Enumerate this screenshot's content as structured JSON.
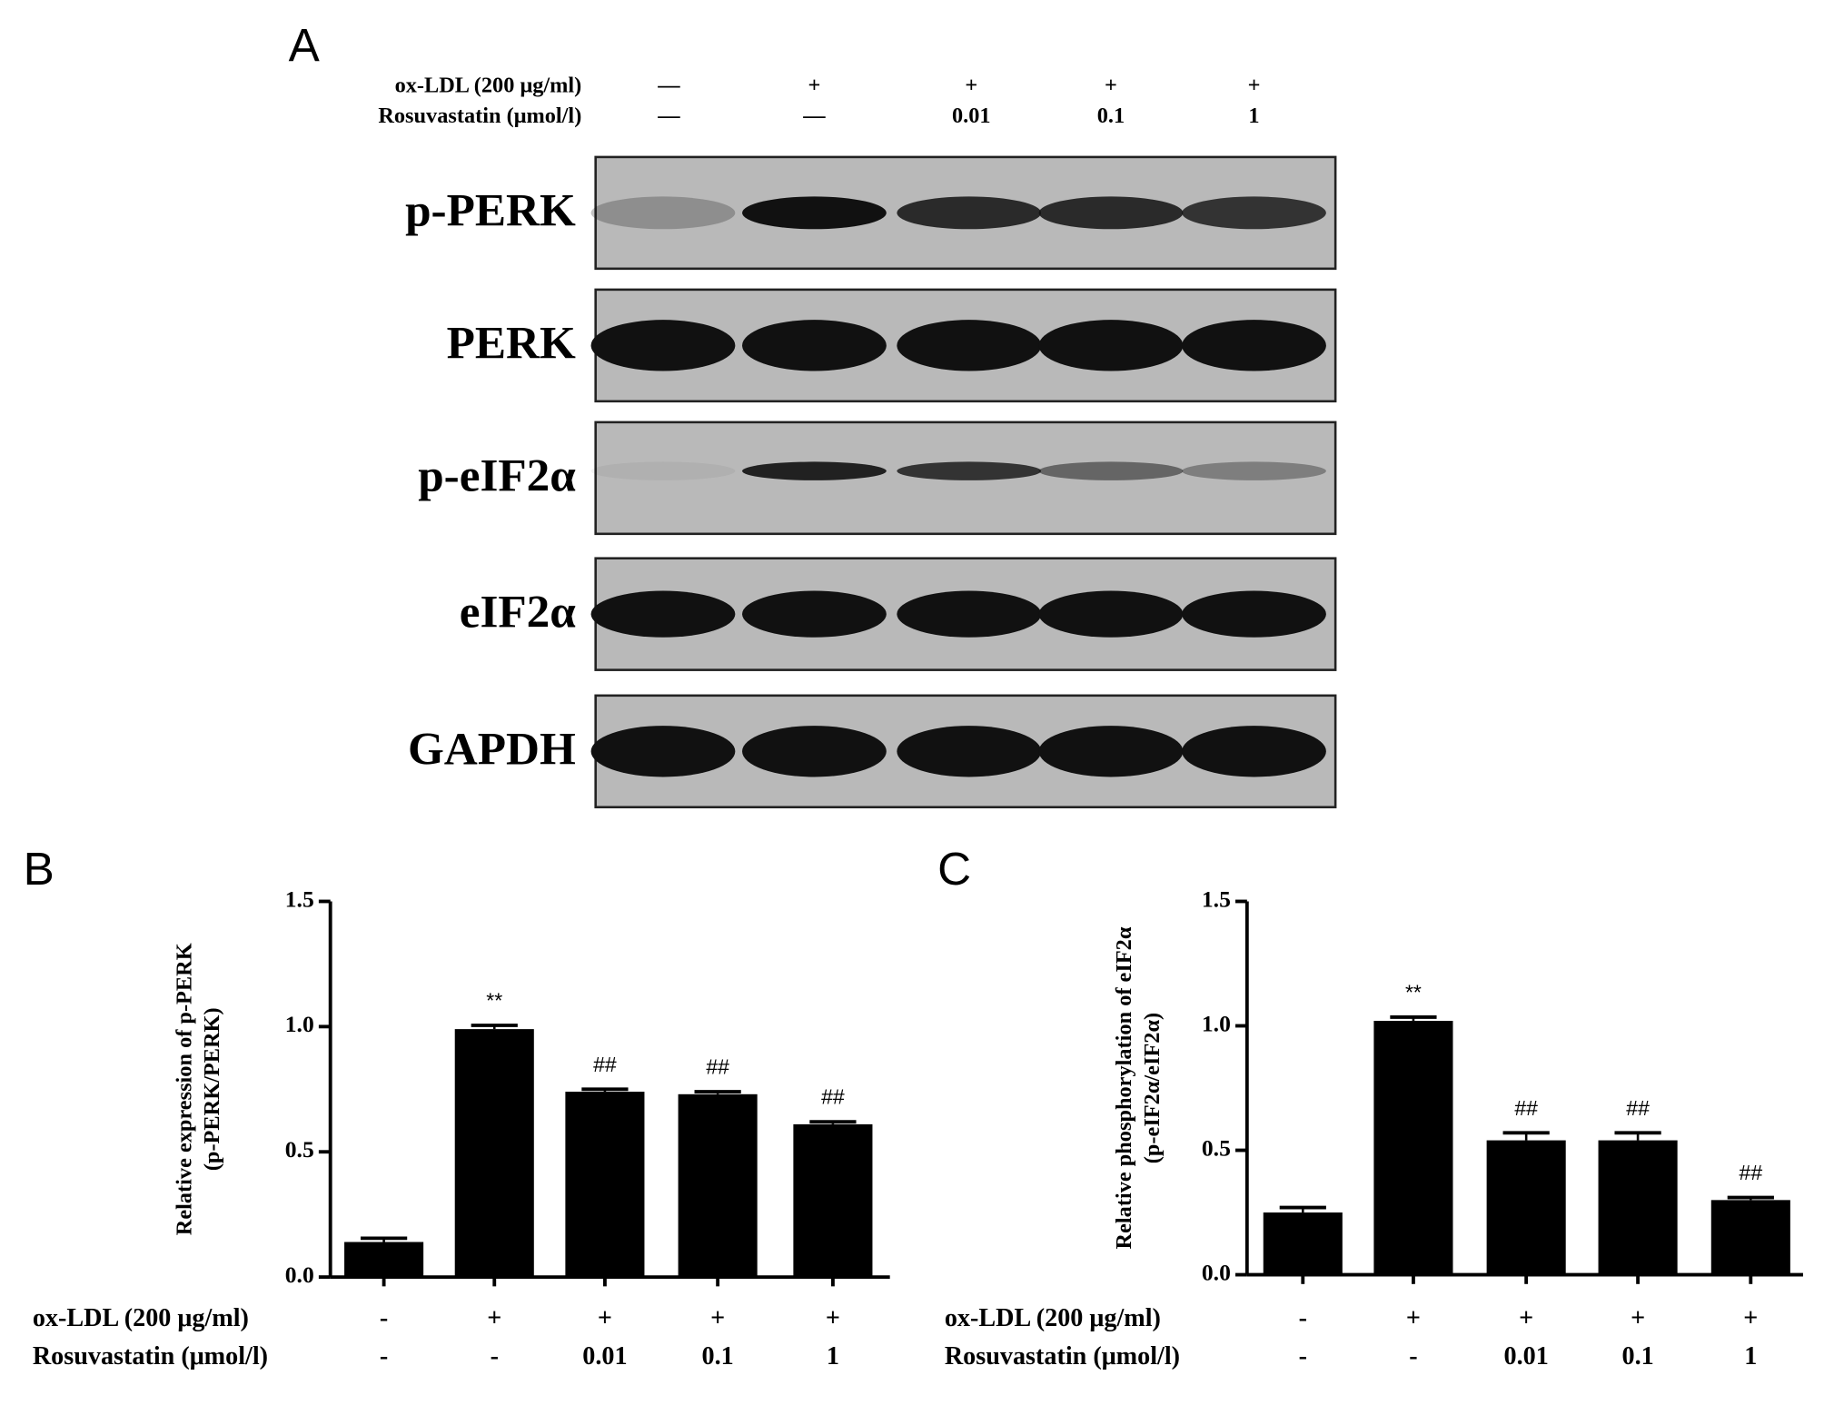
{
  "panel_a": {
    "label": "A",
    "condition_rows": [
      {
        "label": "ox-LDL (200 μg/ml)",
        "lanes": [
          "—",
          "+",
          "+",
          "+",
          "+"
        ]
      },
      {
        "label": "Rosuvastatin (μmol/l)",
        "lanes": [
          "—",
          "—",
          "0.01",
          "0.1",
          "1"
        ]
      }
    ],
    "blots": [
      "p-PERK",
      "PERK",
      "p-eIF2α",
      "eIF2α",
      "GAPDH"
    ]
  },
  "chart_data": [
    {
      "type": "bar",
      "panel": "B",
      "ylabel": [
        "Relative expression of p-PERK",
        "(p-PERK/PERK)"
      ],
      "category_rows": [
        {
          "label": "ox-LDL (200 μg/ml)",
          "values": [
            "-",
            "+",
            "+",
            "+",
            "+"
          ]
        },
        {
          "label": "Rosuvastatin (μmol/l)",
          "values": [
            "-",
            "-",
            "0.01",
            "0.1",
            "1"
          ]
        }
      ],
      "values": [
        0.14,
        0.99,
        0.74,
        0.73,
        0.61
      ],
      "errors": [
        0.015,
        0.015,
        0.01,
        0.01,
        0.01
      ],
      "annotations": [
        null,
        "**",
        "##",
        "##",
        "##"
      ],
      "color": "#000000",
      "ylim": [
        0,
        1.5
      ],
      "yticks": [
        {
          "value": 0,
          "label": "0.0"
        },
        {
          "value": 0.5,
          "label": "0.5"
        },
        {
          "value": 1,
          "label": "1.0"
        },
        {
          "value": 1.5,
          "label": "1.5"
        }
      ]
    },
    {
      "type": "bar",
      "panel": "C",
      "ylabel": [
        "Relative phosphorylation of eIF2α",
        "(p-eIF2α/eIF2α)"
      ],
      "category_rows": [
        {
          "label": "ox-LDL (200 μg/ml)",
          "values": [
            "-",
            "+",
            "+",
            "+",
            "+"
          ]
        },
        {
          "label": "Rosuvastatin (μmol/l)",
          "values": [
            "-",
            "-",
            "0.01",
            "0.1",
            "1"
          ]
        }
      ],
      "values": [
        0.25,
        1.02,
        0.54,
        0.54,
        0.3
      ],
      "errors": [
        0.02,
        0.015,
        0.03,
        0.03,
        0.01
      ],
      "annotations": [
        null,
        "**",
        "##",
        "##",
        "##"
      ],
      "color": "#000000",
      "ylim": [
        0,
        1.5
      ],
      "yticks": [
        {
          "value": 0,
          "label": "0.0"
        },
        {
          "value": 0.5,
          "label": "0.5"
        },
        {
          "value": 1,
          "label": "1.0"
        },
        {
          "value": 1.5,
          "label": "1.5"
        }
      ]
    }
  ]
}
